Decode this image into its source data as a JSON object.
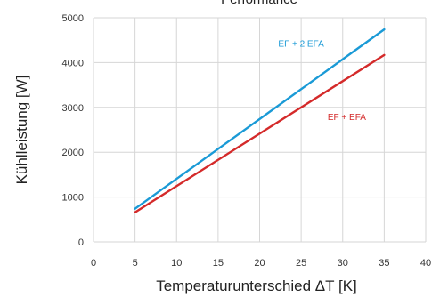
{
  "chart_data": {
    "type": "line",
    "title": "Performance",
    "xlabel": "Temperaturunterschied ΔT [K]",
    "ylabel": "Kühlleistung [W]",
    "xlim": [
      0,
      40
    ],
    "ylim": [
      0,
      5000
    ],
    "xticks": [
      "0",
      "5",
      "10",
      "15",
      "20",
      "25",
      "30",
      "35",
      "40"
    ],
    "yticks": [
      "0",
      "1000",
      "2000",
      "3000",
      "4000",
      "5000"
    ],
    "grid": true,
    "legend": "inline labels",
    "series": [
      {
        "name": "EF + 2 EFA",
        "color": "#1a9ad6",
        "x": [
          5,
          35
        ],
        "y": [
          740,
          4740
        ],
        "label_at": [
          25,
          4360
        ]
      },
      {
        "name": "EF + EFA",
        "color": "#d42a2a",
        "x": [
          5,
          35
        ],
        "y": [
          660,
          4170
        ],
        "label_at": [
          30.5,
          2720
        ]
      }
    ]
  }
}
